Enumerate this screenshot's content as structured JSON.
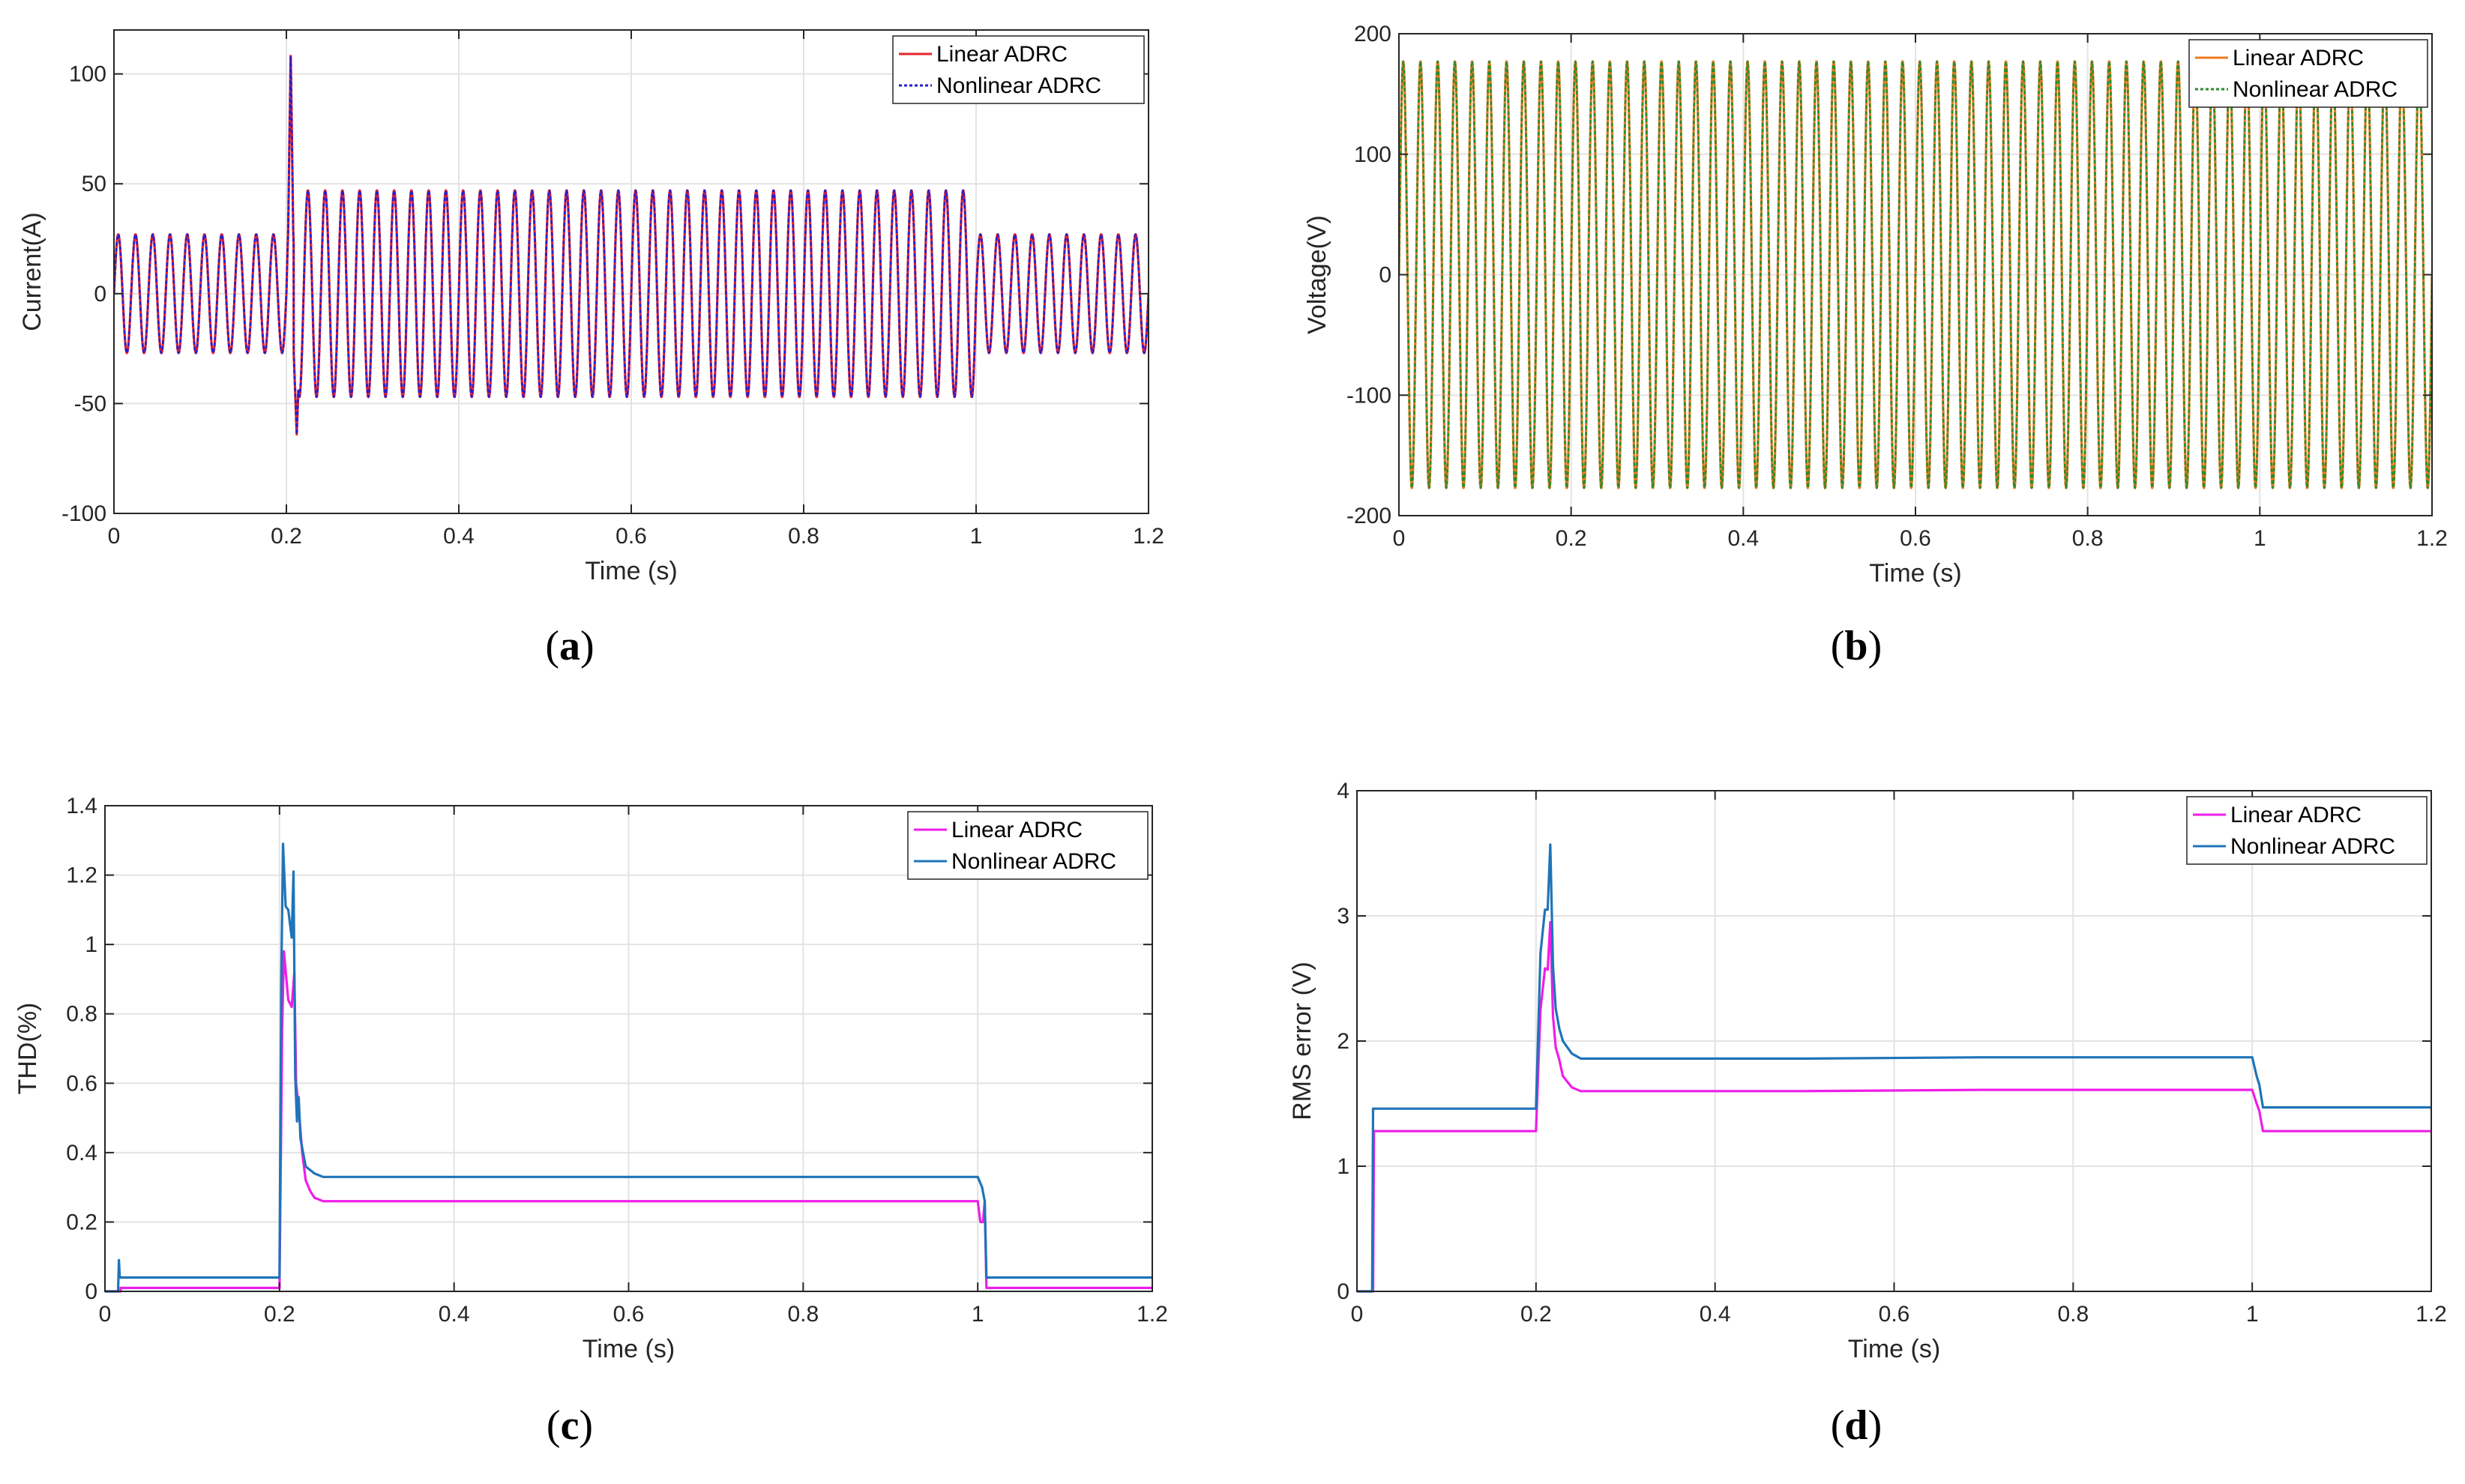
{
  "chart_data": [
    {
      "id": "a",
      "type": "line",
      "caption": "a",
      "xlabel": "Time (s)",
      "ylabel": "Current(A)",
      "xlim": [
        0,
        1.2
      ],
      "ylim": [
        -100,
        120
      ],
      "xticks": [
        0,
        0.2,
        0.4,
        0.6,
        0.8,
        1,
        1.2
      ],
      "xtick_labels": [
        "0",
        "0.2",
        "0.4",
        "0.6",
        "0.8",
        "1",
        "1.2"
      ],
      "yticks": [
        -100,
        -50,
        0,
        50,
        100
      ],
      "ytick_labels": [
        "-100",
        "-50",
        "0",
        "50",
        "100"
      ],
      "grid": true,
      "legend_position": "top-right",
      "signal": {
        "kind": "sine",
        "frequency_hz": 50,
        "segments": [
          {
            "t_start": 0,
            "t_end": 0.2,
            "amplitude": 27
          },
          {
            "t_start": 0.2,
            "t_end": 1.0,
            "amplitude": 47
          },
          {
            "t_start": 1.0,
            "t_end": 1.2,
            "amplitude": 27
          }
        ],
        "transient": {
          "t": 0.205,
          "peak": 110,
          "trough": -64
        }
      },
      "series": [
        {
          "name": "Linear ADRC",
          "color": "#e8222e",
          "style": "solid"
        },
        {
          "name": "Nonlinear ADRC",
          "color": "#2b1ec8",
          "style": "dotted"
        }
      ]
    },
    {
      "id": "b",
      "type": "line",
      "caption": "b",
      "xlabel": "Time (s)",
      "ylabel": "Voltage(V)",
      "xlim": [
        0,
        1.2
      ],
      "ylim": [
        -200,
        200
      ],
      "xticks": [
        0,
        0.2,
        0.4,
        0.6,
        0.8,
        1,
        1.2
      ],
      "xtick_labels": [
        "0",
        "0.2",
        "0.4",
        "0.6",
        "0.8",
        "1",
        "1.2"
      ],
      "yticks": [
        -200,
        -100,
        0,
        100,
        200
      ],
      "ytick_labels": [
        "-200",
        "-100",
        "0",
        "100",
        "200"
      ],
      "grid": true,
      "legend_position": "top-right",
      "signal": {
        "kind": "sine",
        "frequency_hz": 50,
        "segments": [
          {
            "t_start": 0,
            "t_end": 1.2,
            "amplitude": 177
          }
        ]
      },
      "series": [
        {
          "name": "Linear ADRC",
          "color": "#f07b1e",
          "style": "solid"
        },
        {
          "name": "Nonlinear ADRC",
          "color": "#2e8a2e",
          "style": "dotted"
        }
      ]
    },
    {
      "id": "c",
      "type": "line",
      "caption": "c",
      "xlabel": "Time (s)",
      "ylabel": "THD(%)",
      "xlim": [
        0,
        1.2
      ],
      "ylim": [
        0,
        1.4
      ],
      "xticks": [
        0,
        0.2,
        0.4,
        0.6,
        0.8,
        1,
        1.2
      ],
      "xtick_labels": [
        "0",
        "0.2",
        "0.4",
        "0.6",
        "0.8",
        "1",
        "1.2"
      ],
      "yticks": [
        0,
        0.2,
        0.4,
        0.6,
        0.8,
        1,
        1.2,
        1.4
      ],
      "ytick_labels": [
        "0",
        "0.2",
        "0.4",
        "0.6",
        "0.8",
        "1",
        "1.2",
        "1.4"
      ],
      "grid": true,
      "legend_position": "top-right",
      "series": [
        {
          "name": "Linear ADRC",
          "color": "#ee1ee8",
          "style": "solid",
          "x": [
            0,
            0.018,
            0.018,
            0.2,
            0.203,
            0.205,
            0.21,
            0.214,
            0.217,
            0.219,
            0.222,
            0.226,
            0.23,
            0.235,
            0.24,
            0.25,
            0.26,
            0.3,
            0.5,
            0.7,
            0.9,
            1.0,
            1.003,
            1.006,
            1.008,
            1.01,
            1.2
          ],
          "y": [
            0,
            0,
            0.01,
            0.01,
            0.75,
            0.98,
            0.84,
            0.82,
            0.92,
            0.6,
            0.53,
            0.4,
            0.32,
            0.29,
            0.27,
            0.26,
            0.26,
            0.26,
            0.26,
            0.26,
            0.26,
            0.26,
            0.2,
            0.2,
            0.26,
            0.01,
            0.01
          ]
        },
        {
          "name": "Nonlinear ADRC",
          "color": "#1f74b8",
          "style": "solid",
          "x": [
            0,
            0.015,
            0.016,
            0.017,
            0.018,
            0.2,
            0.202,
            0.204,
            0.207,
            0.21,
            0.214,
            0.216,
            0.218,
            0.22,
            0.222,
            0.224,
            0.227,
            0.23,
            0.235,
            0.24,
            0.25,
            0.26,
            0.3,
            0.5,
            0.7,
            0.9,
            1.0,
            1.005,
            1.008,
            1.01,
            1.2
          ],
          "y": [
            0,
            0,
            0.09,
            0.04,
            0.04,
            0.04,
            0.9,
            1.29,
            1.11,
            1.1,
            1.02,
            1.21,
            0.62,
            0.49,
            0.56,
            0.44,
            0.4,
            0.36,
            0.35,
            0.34,
            0.33,
            0.33,
            0.33,
            0.33,
            0.33,
            0.33,
            0.33,
            0.3,
            0.26,
            0.04,
            0.04
          ]
        }
      ]
    },
    {
      "id": "d",
      "type": "line",
      "caption": "d",
      "xlabel": "Time (s)",
      "ylabel": "RMS error (V)",
      "xlim": [
        0,
        1.2
      ],
      "ylim": [
        0,
        4
      ],
      "xticks": [
        0,
        0.2,
        0.4,
        0.6,
        0.8,
        1,
        1.2
      ],
      "xtick_labels": [
        "0",
        "0.2",
        "0.4",
        "0.6",
        "0.8",
        "1",
        "1.2"
      ],
      "yticks": [
        0,
        1,
        2,
        3,
        4
      ],
      "ytick_labels": [
        "0",
        "1",
        "2",
        "3",
        "4"
      ],
      "grid": true,
      "legend_position": "top-right",
      "series": [
        {
          "name": "Linear ADRC",
          "color": "#ee1ee8",
          "style": "solid",
          "x": [
            0,
            0.018,
            0.019,
            0.2,
            0.205,
            0.21,
            0.213,
            0.216,
            0.219,
            0.222,
            0.226,
            0.23,
            0.24,
            0.25,
            0.3,
            0.5,
            0.7,
            0.9,
            1.0,
            1.005,
            1.008,
            1.012,
            1.2
          ],
          "y": [
            0,
            0,
            1.28,
            1.28,
            2.25,
            2.58,
            2.57,
            2.95,
            2.2,
            1.95,
            1.85,
            1.72,
            1.63,
            1.6,
            1.6,
            1.6,
            1.61,
            1.61,
            1.61,
            1.5,
            1.44,
            1.28,
            1.28
          ]
        },
        {
          "name": "Nonlinear ADRC",
          "color": "#1f74b8",
          "style": "solid",
          "x": [
            0,
            0.017,
            0.018,
            0.2,
            0.205,
            0.21,
            0.213,
            0.216,
            0.219,
            0.222,
            0.226,
            0.23,
            0.24,
            0.25,
            0.3,
            0.5,
            0.7,
            0.9,
            1.0,
            1.005,
            1.008,
            1.012,
            1.2
          ],
          "y": [
            0,
            0,
            1.46,
            1.46,
            2.7,
            3.05,
            3.05,
            3.57,
            2.6,
            2.26,
            2.1,
            2.0,
            1.9,
            1.86,
            1.86,
            1.86,
            1.87,
            1.87,
            1.87,
            1.72,
            1.65,
            1.47,
            1.47
          ]
        }
      ]
    }
  ]
}
